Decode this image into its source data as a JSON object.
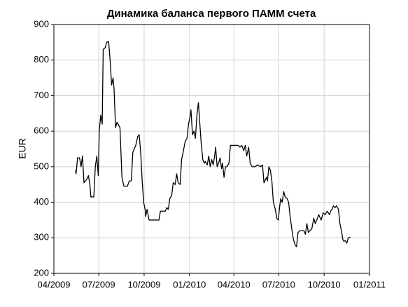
{
  "chart_data": {
    "type": "line",
    "title": "Динамика баланса первого ПАММ счета",
    "y_label": "EUR",
    "x": [
      "2009-05-15",
      "2009-05-16",
      "2009-05-19",
      "2009-05-23",
      "2009-05-26",
      "2009-05-29",
      "2009-06-01",
      "2009-06-07",
      "2009-06-10",
      "2009-06-13",
      "2009-06-15",
      "2009-06-21",
      "2009-06-24",
      "2009-06-27",
      "2009-06-30",
      "2009-07-02",
      "2009-07-05",
      "2009-07-08",
      "2009-07-10",
      "2009-07-14",
      "2009-07-17",
      "2009-07-21",
      "2009-07-24",
      "2009-07-27",
      "2009-07-30",
      "2009-08-01",
      "2009-08-04",
      "2009-08-07",
      "2009-08-13",
      "2009-08-17",
      "2009-08-21",
      "2009-08-28",
      "2009-09-01",
      "2009-09-05",
      "2009-09-08",
      "2009-09-14",
      "2009-09-18",
      "2009-09-21",
      "2009-09-24",
      "2009-09-27",
      "2009-09-30",
      "2009-10-03",
      "2009-10-04",
      "2009-10-07",
      "2009-10-11",
      "2009-10-21",
      "2009-10-31",
      "2009-11-03",
      "2009-11-13",
      "2009-11-16",
      "2009-11-19",
      "2009-11-22",
      "2009-11-26",
      "2009-11-29",
      "2009-12-03",
      "2009-12-06",
      "2009-12-09",
      "2009-12-13",
      "2009-12-16",
      "2009-12-19",
      "2009-12-23",
      "2009-12-27",
      "2009-12-30",
      "2010-01-02",
      "2010-01-04",
      "2010-01-07",
      "2010-01-10",
      "2010-01-13",
      "2010-01-16",
      "2010-01-19",
      "2010-01-22",
      "2010-01-25",
      "2010-01-28",
      "2010-01-31",
      "2010-02-02",
      "2010-02-06",
      "2010-02-09",
      "2010-02-12",
      "2010-02-15",
      "2010-02-18",
      "2010-02-21",
      "2010-02-23",
      "2010-02-26",
      "2010-03-01",
      "2010-03-04",
      "2010-03-07",
      "2010-03-09",
      "2010-03-12",
      "2010-03-15",
      "2010-03-18",
      "2010-03-22",
      "2010-03-25",
      "2010-04-04",
      "2010-04-10",
      "2010-04-13",
      "2010-04-17",
      "2010-04-21",
      "2010-04-24",
      "2010-04-27",
      "2010-05-01",
      "2010-05-04",
      "2010-05-08",
      "2010-05-14",
      "2010-05-19",
      "2010-05-25",
      "2010-05-29",
      "2010-06-01",
      "2010-06-06",
      "2010-06-08",
      "2010-06-11",
      "2010-06-14",
      "2010-06-17",
      "2010-06-20",
      "2010-06-24",
      "2010-06-27",
      "2010-06-30",
      "2010-07-03",
      "2010-07-05",
      "2010-07-08",
      "2010-07-11",
      "2010-07-14",
      "2010-07-18",
      "2010-07-21",
      "2010-07-24",
      "2010-07-27",
      "2010-07-30",
      "2010-08-03",
      "2010-08-06",
      "2010-08-09",
      "2010-08-13",
      "2010-08-17",
      "2010-08-21",
      "2010-08-24",
      "2010-08-27",
      "2010-08-30",
      "2010-09-02",
      "2010-09-06",
      "2010-09-10",
      "2010-09-13",
      "2010-09-16",
      "2010-09-20",
      "2010-09-25",
      "2010-09-29",
      "2010-10-03",
      "2010-10-07",
      "2010-10-12",
      "2010-10-14",
      "2010-10-17",
      "2010-10-20",
      "2010-10-23",
      "2010-10-26",
      "2010-10-30",
      "2010-11-02",
      "2010-11-05",
      "2010-11-08",
      "2010-11-10",
      "2010-11-13",
      "2010-11-16",
      "2010-11-19",
      "2010-11-23"
    ],
    "series": [
      {
        "name": "EUR",
        "color": "#000000",
        "values": [
          490,
          480,
          525,
          525,
          500,
          530,
          455,
          465,
          475,
          450,
          415,
          415,
          500,
          530,
          475,
          600,
          645,
          620,
          830,
          835,
          850,
          852,
          800,
          730,
          750,
          720,
          610,
          625,
          610,
          470,
          445,
          445,
          460,
          460,
          540,
          560,
          585,
          590,
          540,
          460,
          400,
          380,
          360,
          380,
          350,
          350,
          350,
          375,
          375,
          385,
          380,
          410,
          420,
          455,
          450,
          480,
          455,
          450,
          520,
          540,
          570,
          580,
          620,
          640,
          660,
          590,
          600,
          580,
          645,
          680,
          620,
          560,
          520,
          510,
          515,
          505,
          530,
          500,
          520,
          505,
          530,
          555,
          500,
          510,
          525,
          495,
          510,
          470,
          500,
          500,
          510,
          560,
          560,
          560,
          555,
          560,
          545,
          560,
          530,
          555,
          510,
          500,
          500,
          505,
          500,
          505,
          455,
          470,
          460,
          500,
          490,
          460,
          400,
          380,
          355,
          350,
          390,
          410,
          400,
          430,
          415,
          410,
          400,
          360,
          330,
          300,
          280,
          275,
          315,
          320,
          320,
          320,
          310,
          340,
          315,
          320,
          325,
          355,
          340,
          350,
          365,
          350,
          370,
          365,
          375,
          365,
          375,
          380,
          390,
          385,
          390,
          380,
          340,
          320,
          295,
          290,
          292,
          285,
          300,
          302
        ]
      }
    ],
    "xlim": [
      "2009-04-01",
      "2011-01-01"
    ],
    "xticks": [
      {
        "value": "2009-04-01",
        "label": "04/2009"
      },
      {
        "value": "2009-07-01",
        "label": "07/2009"
      },
      {
        "value": "2009-10-01",
        "label": "10/2009"
      },
      {
        "value": "2010-01-01",
        "label": "01/2010"
      },
      {
        "value": "2010-04-01",
        "label": "04/2010"
      },
      {
        "value": "2010-07-01",
        "label": "07/2010"
      },
      {
        "value": "2010-10-01",
        "label": "10/2010"
      },
      {
        "value": "2011-01-01",
        "label": "01/2011"
      }
    ],
    "ylim": [
      200,
      900
    ],
    "yticks": [
      200,
      300,
      400,
      500,
      600,
      700,
      800,
      900
    ],
    "grid": true
  }
}
